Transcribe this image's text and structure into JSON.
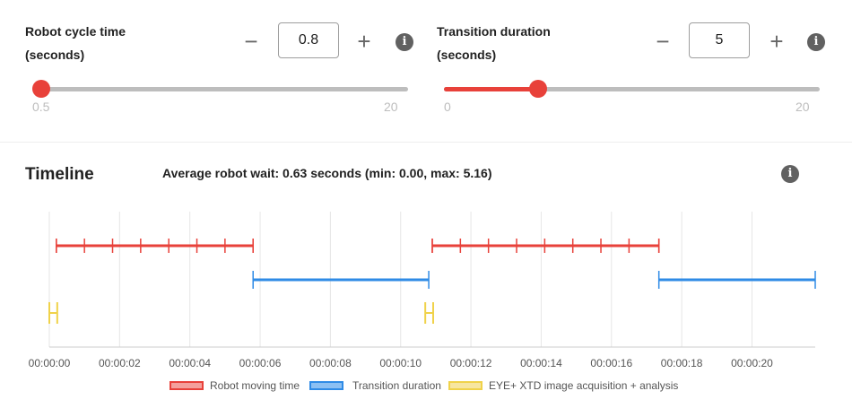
{
  "controls": {
    "cycle": {
      "title_line1": "Robot cycle time",
      "title_line2": "(seconds)",
      "value": "0.8",
      "minus": "−",
      "plus": "+",
      "info": "i",
      "slider": {
        "min": 0.5,
        "max": 20,
        "value": 0.8,
        "min_label": "0.5",
        "max_label": "20"
      }
    },
    "transition": {
      "title_line1": "Transition duration",
      "title_line2": "(seconds)",
      "value": "5",
      "minus": "−",
      "plus": "+",
      "info": "i",
      "slider": {
        "min": 0,
        "max": 20,
        "value": 5,
        "min_label": "0",
        "max_label": "20"
      }
    }
  },
  "timeline": {
    "title": "Timeline",
    "average_text": "Average robot wait: 0.63 seconds (min: 0.00, max: 5.16)",
    "info": "i"
  },
  "colors": {
    "accent": "#e8413a",
    "robot": "#e8413a",
    "transition": "#2f8be6",
    "eye": "#f0d24a"
  },
  "chart_data": {
    "type": "timeline",
    "x_ticks": [
      "00:00:00",
      "00:00:02",
      "00:00:04",
      "00:00:06",
      "00:00:08",
      "00:00:10",
      "00:00:12",
      "00:00:14",
      "00:00:16",
      "00:00:18",
      "00:00:20"
    ],
    "xlim": [
      0,
      21.8
    ],
    "series": [
      {
        "name": "Robot moving time",
        "color": "#e8413a",
        "intervals": [
          [
            0.2,
            5.8
          ],
          [
            10.9,
            17.35
          ]
        ],
        "steps": [
          0.2,
          1.0,
          1.8,
          2.6,
          3.4,
          4.2,
          5.0,
          5.8,
          10.9,
          11.7,
          12.5,
          13.3,
          14.1,
          14.9,
          15.7,
          16.5,
          17.35
        ]
      },
      {
        "name": "Transition duration",
        "color": "#2f8be6",
        "intervals": [
          [
            5.8,
            10.8
          ],
          [
            17.35,
            21.8
          ]
        ]
      },
      {
        "name": "EYE+ XTD image acquisition + analysis",
        "color": "#f0d24a",
        "intervals": [
          [
            0.0,
            0.2
          ],
          [
            10.7,
            10.9
          ]
        ]
      }
    ]
  },
  "legend": [
    {
      "label": "Robot moving time",
      "color": "#e8413a",
      "fill": "#f4a09c"
    },
    {
      "label": "Transition duration",
      "color": "#2f8be6",
      "fill": "#8cc0f3"
    },
    {
      "label": "EYE+ XTD image acquisition + analysis",
      "color": "#f0d24a",
      "fill": "#f7e6a0"
    }
  ]
}
